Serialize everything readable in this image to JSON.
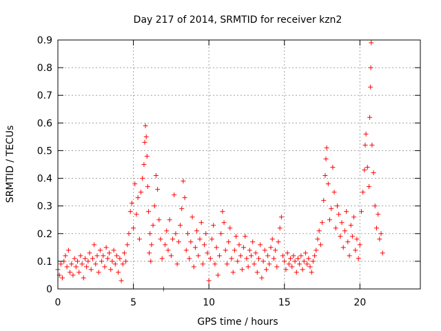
{
  "chart_data": {
    "type": "scatter",
    "title": "Day 217 of 2014, SRMTID for receiver kzn2",
    "xlabel": "GPS time / hours",
    "ylabel": "SRMTID / TECUs",
    "xlim": [
      0,
      24
    ],
    "ylim": [
      0,
      0.9
    ],
    "x_ticks": [
      0,
      5,
      10,
      15,
      20
    ],
    "y_ticks": [
      0,
      0.1,
      0.2,
      0.3,
      0.4,
      0.5,
      0.6,
      0.7,
      0.8,
      0.9
    ],
    "grid": true,
    "marker": "plus",
    "color": "#ff0000",
    "series": [
      {
        "name": "kzn2",
        "points": [
          [
            0.0,
            0.07
          ],
          [
            0.1,
            0.05
          ],
          [
            0.2,
            0.09
          ],
          [
            0.3,
            0.04
          ],
          [
            0.4,
            0.1
          ],
          [
            0.5,
            0.12
          ],
          [
            0.6,
            0.08
          ],
          [
            0.7,
            0.14
          ],
          [
            0.8,
            0.06
          ],
          [
            0.9,
            0.09
          ],
          [
            1.0,
            0.05
          ],
          [
            1.1,
            0.11
          ],
          [
            1.2,
            0.08
          ],
          [
            1.3,
            0.1
          ],
          [
            1.4,
            0.06
          ],
          [
            1.5,
            0.12
          ],
          [
            1.6,
            0.09
          ],
          [
            1.7,
            0.04
          ],
          [
            1.8,
            0.11
          ],
          [
            1.9,
            0.08
          ],
          [
            2.0,
            0.1
          ],
          [
            2.1,
            0.13
          ],
          [
            2.2,
            0.07
          ],
          [
            2.3,
            0.11
          ],
          [
            2.4,
            0.16
          ],
          [
            2.5,
            0.09
          ],
          [
            2.6,
            0.12
          ],
          [
            2.7,
            0.06
          ],
          [
            2.8,
            0.14
          ],
          [
            2.9,
            0.1
          ],
          [
            3.0,
            0.12
          ],
          [
            3.1,
            0.08
          ],
          [
            3.2,
            0.15
          ],
          [
            3.3,
            0.11
          ],
          [
            3.4,
            0.13
          ],
          [
            3.5,
            0.07
          ],
          [
            3.6,
            0.1
          ],
          [
            3.7,
            0.14
          ],
          [
            3.8,
            0.09
          ],
          [
            3.9,
            0.12
          ],
          [
            4.0,
            0.06
          ],
          [
            4.1,
            0.11
          ],
          [
            4.2,
            0.03
          ],
          [
            4.3,
            0.09
          ],
          [
            4.4,
            0.13
          ],
          [
            4.5,
            0.1
          ],
          [
            4.6,
            0.16
          ],
          [
            4.7,
            0.2
          ],
          [
            4.8,
            0.28
          ],
          [
            4.9,
            0.31
          ],
          [
            5.0,
            0.22
          ],
          [
            5.1,
            0.38
          ],
          [
            5.2,
            0.27
          ],
          [
            5.3,
            0.33
          ],
          [
            5.4,
            0.18
          ],
          [
            5.5,
            0.35
          ],
          [
            5.6,
            0.4
          ],
          [
            5.7,
            0.45
          ],
          [
            5.75,
            0.53
          ],
          [
            5.8,
            0.59
          ],
          [
            5.85,
            0.55
          ],
          [
            5.9,
            0.48
          ],
          [
            5.95,
            0.37
          ],
          [
            6.0,
            0.28
          ],
          [
            6.05,
            0.13
          ],
          [
            6.1,
            0.2
          ],
          [
            6.15,
            0.1
          ],
          [
            6.2,
            0.16
          ],
          [
            6.3,
            0.23
          ],
          [
            6.4,
            0.3
          ],
          [
            6.5,
            0.41
          ],
          [
            6.6,
            0.36
          ],
          [
            6.7,
            0.25
          ],
          [
            6.8,
            0.18
          ],
          [
            6.9,
            0.11
          ],
          [
            7.0,
            0.0
          ],
          [
            7.1,
            0.16
          ],
          [
            7.2,
            0.21
          ],
          [
            7.3,
            0.14
          ],
          [
            7.4,
            0.25
          ],
          [
            7.5,
            0.12
          ],
          [
            7.6,
            0.18
          ],
          [
            7.7,
            0.34
          ],
          [
            7.8,
            0.2
          ],
          [
            7.9,
            0.09
          ],
          [
            8.0,
            0.17
          ],
          [
            8.1,
            0.23
          ],
          [
            8.2,
            0.29
          ],
          [
            8.3,
            0.39
          ],
          [
            8.4,
            0.33
          ],
          [
            8.5,
            0.14
          ],
          [
            8.6,
            0.2
          ],
          [
            8.7,
            0.11
          ],
          [
            8.8,
            0.17
          ],
          [
            8.9,
            0.26
          ],
          [
            9.0,
            0.08
          ],
          [
            9.1,
            0.15
          ],
          [
            9.2,
            0.21
          ],
          [
            9.3,
            0.12
          ],
          [
            9.4,
            0.18
          ],
          [
            9.5,
            0.24
          ],
          [
            9.6,
            0.09
          ],
          [
            9.7,
            0.16
          ],
          [
            9.8,
            0.2
          ],
          [
            9.9,
            0.13
          ],
          [
            10.0,
            0.03
          ],
          [
            10.1,
            0.11
          ],
          [
            10.2,
            0.18
          ],
          [
            10.3,
            0.23
          ],
          [
            10.4,
            0.09
          ],
          [
            10.5,
            0.15
          ],
          [
            10.6,
            0.05
          ],
          [
            10.7,
            0.12
          ],
          [
            10.8,
            0.2
          ],
          [
            10.9,
            0.28
          ],
          [
            11.0,
            0.24
          ],
          [
            11.1,
            0.14
          ],
          [
            11.2,
            0.09
          ],
          [
            11.3,
            0.17
          ],
          [
            11.4,
            0.22
          ],
          [
            11.5,
            0.11
          ],
          [
            11.6,
            0.06
          ],
          [
            11.7,
            0.14
          ],
          [
            11.8,
            0.19
          ],
          [
            11.9,
            0.1
          ],
          [
            12.0,
            0.16
          ],
          [
            12.1,
            0.12
          ],
          [
            12.2,
            0.07
          ],
          [
            12.3,
            0.15
          ],
          [
            12.4,
            0.19
          ],
          [
            12.5,
            0.11
          ],
          [
            12.6,
            0.08
          ],
          [
            12.7,
            0.14
          ],
          [
            12.8,
            0.12
          ],
          [
            12.9,
            0.17
          ],
          [
            13.0,
            0.09
          ],
          [
            13.1,
            0.13
          ],
          [
            13.2,
            0.06
          ],
          [
            13.3,
            0.11
          ],
          [
            13.4,
            0.16
          ],
          [
            13.5,
            0.04
          ],
          [
            13.6,
            0.1
          ],
          [
            13.7,
            0.14
          ],
          [
            13.8,
            0.07
          ],
          [
            13.9,
            0.12
          ],
          [
            14.0,
            0.09
          ],
          [
            14.1,
            0.15
          ],
          [
            14.2,
            0.18
          ],
          [
            14.3,
            0.11
          ],
          [
            14.4,
            0.14
          ],
          [
            14.5,
            0.08
          ],
          [
            14.6,
            0.17
          ],
          [
            14.7,
            0.22
          ],
          [
            14.8,
            0.26
          ],
          [
            14.9,
            0.12
          ],
          [
            15.0,
            0.1
          ],
          [
            15.1,
            0.07
          ],
          [
            15.2,
            0.13
          ],
          [
            15.3,
            0.09
          ],
          [
            15.4,
            0.11
          ],
          [
            15.5,
            0.08
          ],
          [
            15.6,
            0.12
          ],
          [
            15.7,
            0.1
          ],
          [
            15.8,
            0.06
          ],
          [
            15.9,
            0.11
          ],
          [
            16.0,
            0.09
          ],
          [
            16.1,
            0.12
          ],
          [
            16.2,
            0.07
          ],
          [
            16.3,
            0.1
          ],
          [
            16.4,
            0.13
          ],
          [
            16.5,
            0.09
          ],
          [
            16.6,
            0.11
          ],
          [
            16.7,
            0.08
          ],
          [
            16.8,
            0.06
          ],
          [
            16.9,
            0.1
          ],
          [
            17.0,
            0.12
          ],
          [
            17.1,
            0.14
          ],
          [
            17.2,
            0.18
          ],
          [
            17.3,
            0.21
          ],
          [
            17.4,
            0.16
          ],
          [
            17.5,
            0.24
          ],
          [
            17.6,
            0.32
          ],
          [
            17.7,
            0.41
          ],
          [
            17.75,
            0.47
          ],
          [
            17.8,
            0.51
          ],
          [
            17.9,
            0.38
          ],
          [
            18.0,
            0.25
          ],
          [
            18.1,
            0.29
          ],
          [
            18.2,
            0.44
          ],
          [
            18.3,
            0.35
          ],
          [
            18.4,
            0.22
          ],
          [
            18.5,
            0.3
          ],
          [
            18.6,
            0.27
          ],
          [
            18.7,
            0.19
          ],
          [
            18.8,
            0.24
          ],
          [
            18.9,
            0.15
          ],
          [
            19.0,
            0.21
          ],
          [
            19.1,
            0.28
          ],
          [
            19.2,
            0.17
          ],
          [
            19.3,
            0.12
          ],
          [
            19.4,
            0.23
          ],
          [
            19.5,
            0.19
          ],
          [
            19.6,
            0.26
          ],
          [
            19.7,
            0.14
          ],
          [
            19.8,
            0.18
          ],
          [
            19.9,
            0.11
          ],
          [
            20.0,
            0.16
          ],
          [
            20.1,
            0.28
          ],
          [
            20.2,
            0.35
          ],
          [
            20.3,
            0.43
          ],
          [
            20.35,
            0.52
          ],
          [
            20.4,
            0.56
          ],
          [
            20.5,
            0.44
          ],
          [
            20.6,
            0.37
          ],
          [
            20.65,
            0.62
          ],
          [
            20.7,
            0.73
          ],
          [
            20.72,
            0.8
          ],
          [
            20.75,
            0.89
          ],
          [
            20.8,
            0.52
          ],
          [
            20.9,
            0.42
          ],
          [
            21.0,
            0.3
          ],
          [
            21.1,
            0.22
          ],
          [
            21.2,
            0.27
          ],
          [
            21.3,
            0.18
          ],
          [
            21.4,
            0.2
          ],
          [
            21.5,
            0.13
          ]
        ]
      }
    ]
  }
}
